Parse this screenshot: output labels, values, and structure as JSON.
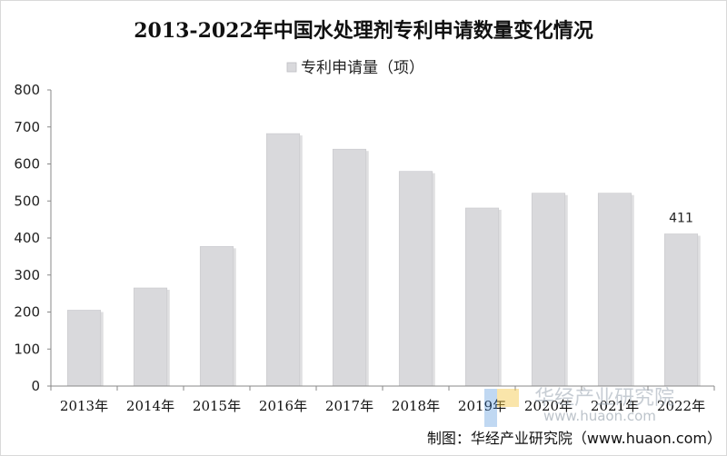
{
  "chart_data": {
    "type": "bar",
    "title": "2013-2022年中国水处理剂专利申请数量变化情况",
    "legend": {
      "label": "专利申请量（项）",
      "position": "top"
    },
    "categories": [
      "2013年",
      "2014年",
      "2015年",
      "2016年",
      "2017年",
      "2018年",
      "2019年",
      "2020年",
      "2021年",
      "2022年"
    ],
    "series": [
      {
        "name": "专利申请量（项）",
        "values": [
          205,
          265,
          377,
          682,
          640,
          580,
          481,
          521,
          521,
          411
        ]
      }
    ],
    "data_labels": [
      {
        "index": 9,
        "text": "411"
      }
    ],
    "ylim": [
      0,
      800
    ],
    "yticks": [
      0,
      100,
      200,
      300,
      400,
      500,
      600,
      700,
      800
    ],
    "grid": false,
    "bar_color": "#d9d9dc",
    "source": "制图：华经产业研究院（www.huaon.com）",
    "watermark": {
      "brand": "华经产业研究院",
      "url": "www.huaon.com"
    }
  }
}
